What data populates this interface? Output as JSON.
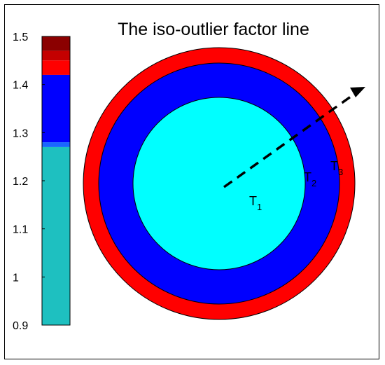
{
  "title": "The iso-outlier factor line",
  "colorbar": {
    "ticks": [
      "1.5",
      "1.4",
      "1.3",
      "1.2",
      "1.1",
      "1",
      "0.9"
    ],
    "range": [
      0.9,
      1.5
    ],
    "bands": [
      {
        "from": 1.47,
        "to": 1.5,
        "color": "#8b0000"
      },
      {
        "from": 1.45,
        "to": 1.47,
        "color": "#c40000"
      },
      {
        "from": 1.42,
        "to": 1.45,
        "color": "#ff0000"
      },
      {
        "from": 1.28,
        "to": 1.42,
        "color": "#0000ff"
      },
      {
        "from": 1.27,
        "to": 1.28,
        "color": "#1a66ff"
      },
      {
        "from": 0.9,
        "to": 1.27,
        "color": "#1ec0c0"
      }
    ]
  },
  "regions": [
    {
      "name": "outer",
      "color": "#ff0000"
    },
    {
      "name": "middle",
      "color": "#0000ff"
    },
    {
      "name": "inner",
      "color": "#00ffff"
    }
  ],
  "labels": {
    "t1": {
      "main": "T",
      "sub": "1"
    },
    "t2": {
      "main": "T",
      "sub": "2"
    },
    "t3": {
      "main": "T",
      "sub": "3"
    }
  },
  "arrow": {
    "style": "dashed",
    "color": "#000000"
  }
}
